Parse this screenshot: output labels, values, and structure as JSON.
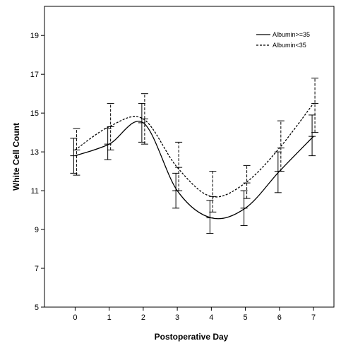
{
  "chart_data": {
    "type": "line",
    "xlabel": "Postoperative Day",
    "ylabel": "White Cell Count",
    "x": [
      0,
      1,
      2,
      3,
      4,
      5,
      6,
      7
    ],
    "xlim": [
      -0.9,
      7.6
    ],
    "ylim": [
      5,
      20.5
    ],
    "x_ticks": [
      "0",
      "1",
      "2",
      "3",
      "4",
      "5",
      "6",
      "7"
    ],
    "y_ticks": [
      "5",
      "7",
      "9",
      "11",
      "13",
      "15",
      "17",
      "19"
    ],
    "y_tick_values": [
      5,
      7,
      9,
      11,
      13,
      15,
      17,
      19
    ],
    "grid": false,
    "legend_position": "top-right",
    "series": [
      {
        "name": "Albumin>=35",
        "style": "solid",
        "color": "#000000",
        "values": [
          12.8,
          13.4,
          14.5,
          11.0,
          9.6,
          10.1,
          12.0,
          13.8
        ],
        "ci_low": [
          11.9,
          12.6,
          13.5,
          10.1,
          8.8,
          9.2,
          10.9,
          12.8
        ],
        "ci_high": [
          13.7,
          14.2,
          15.5,
          11.9,
          10.5,
          11.0,
          13.0,
          14.9
        ]
      },
      {
        "name": "Albumin<35",
        "style": "dashed",
        "color": "#000000",
        "values": [
          13.1,
          14.3,
          14.7,
          12.2,
          10.7,
          11.4,
          13.2,
          15.5
        ],
        "ci_low": [
          11.8,
          13.1,
          13.4,
          11.0,
          9.9,
          10.6,
          12.0,
          14.0
        ],
        "ci_high": [
          14.2,
          15.5,
          16.0,
          13.5,
          12.0,
          12.3,
          14.6,
          16.8
        ]
      }
    ]
  }
}
